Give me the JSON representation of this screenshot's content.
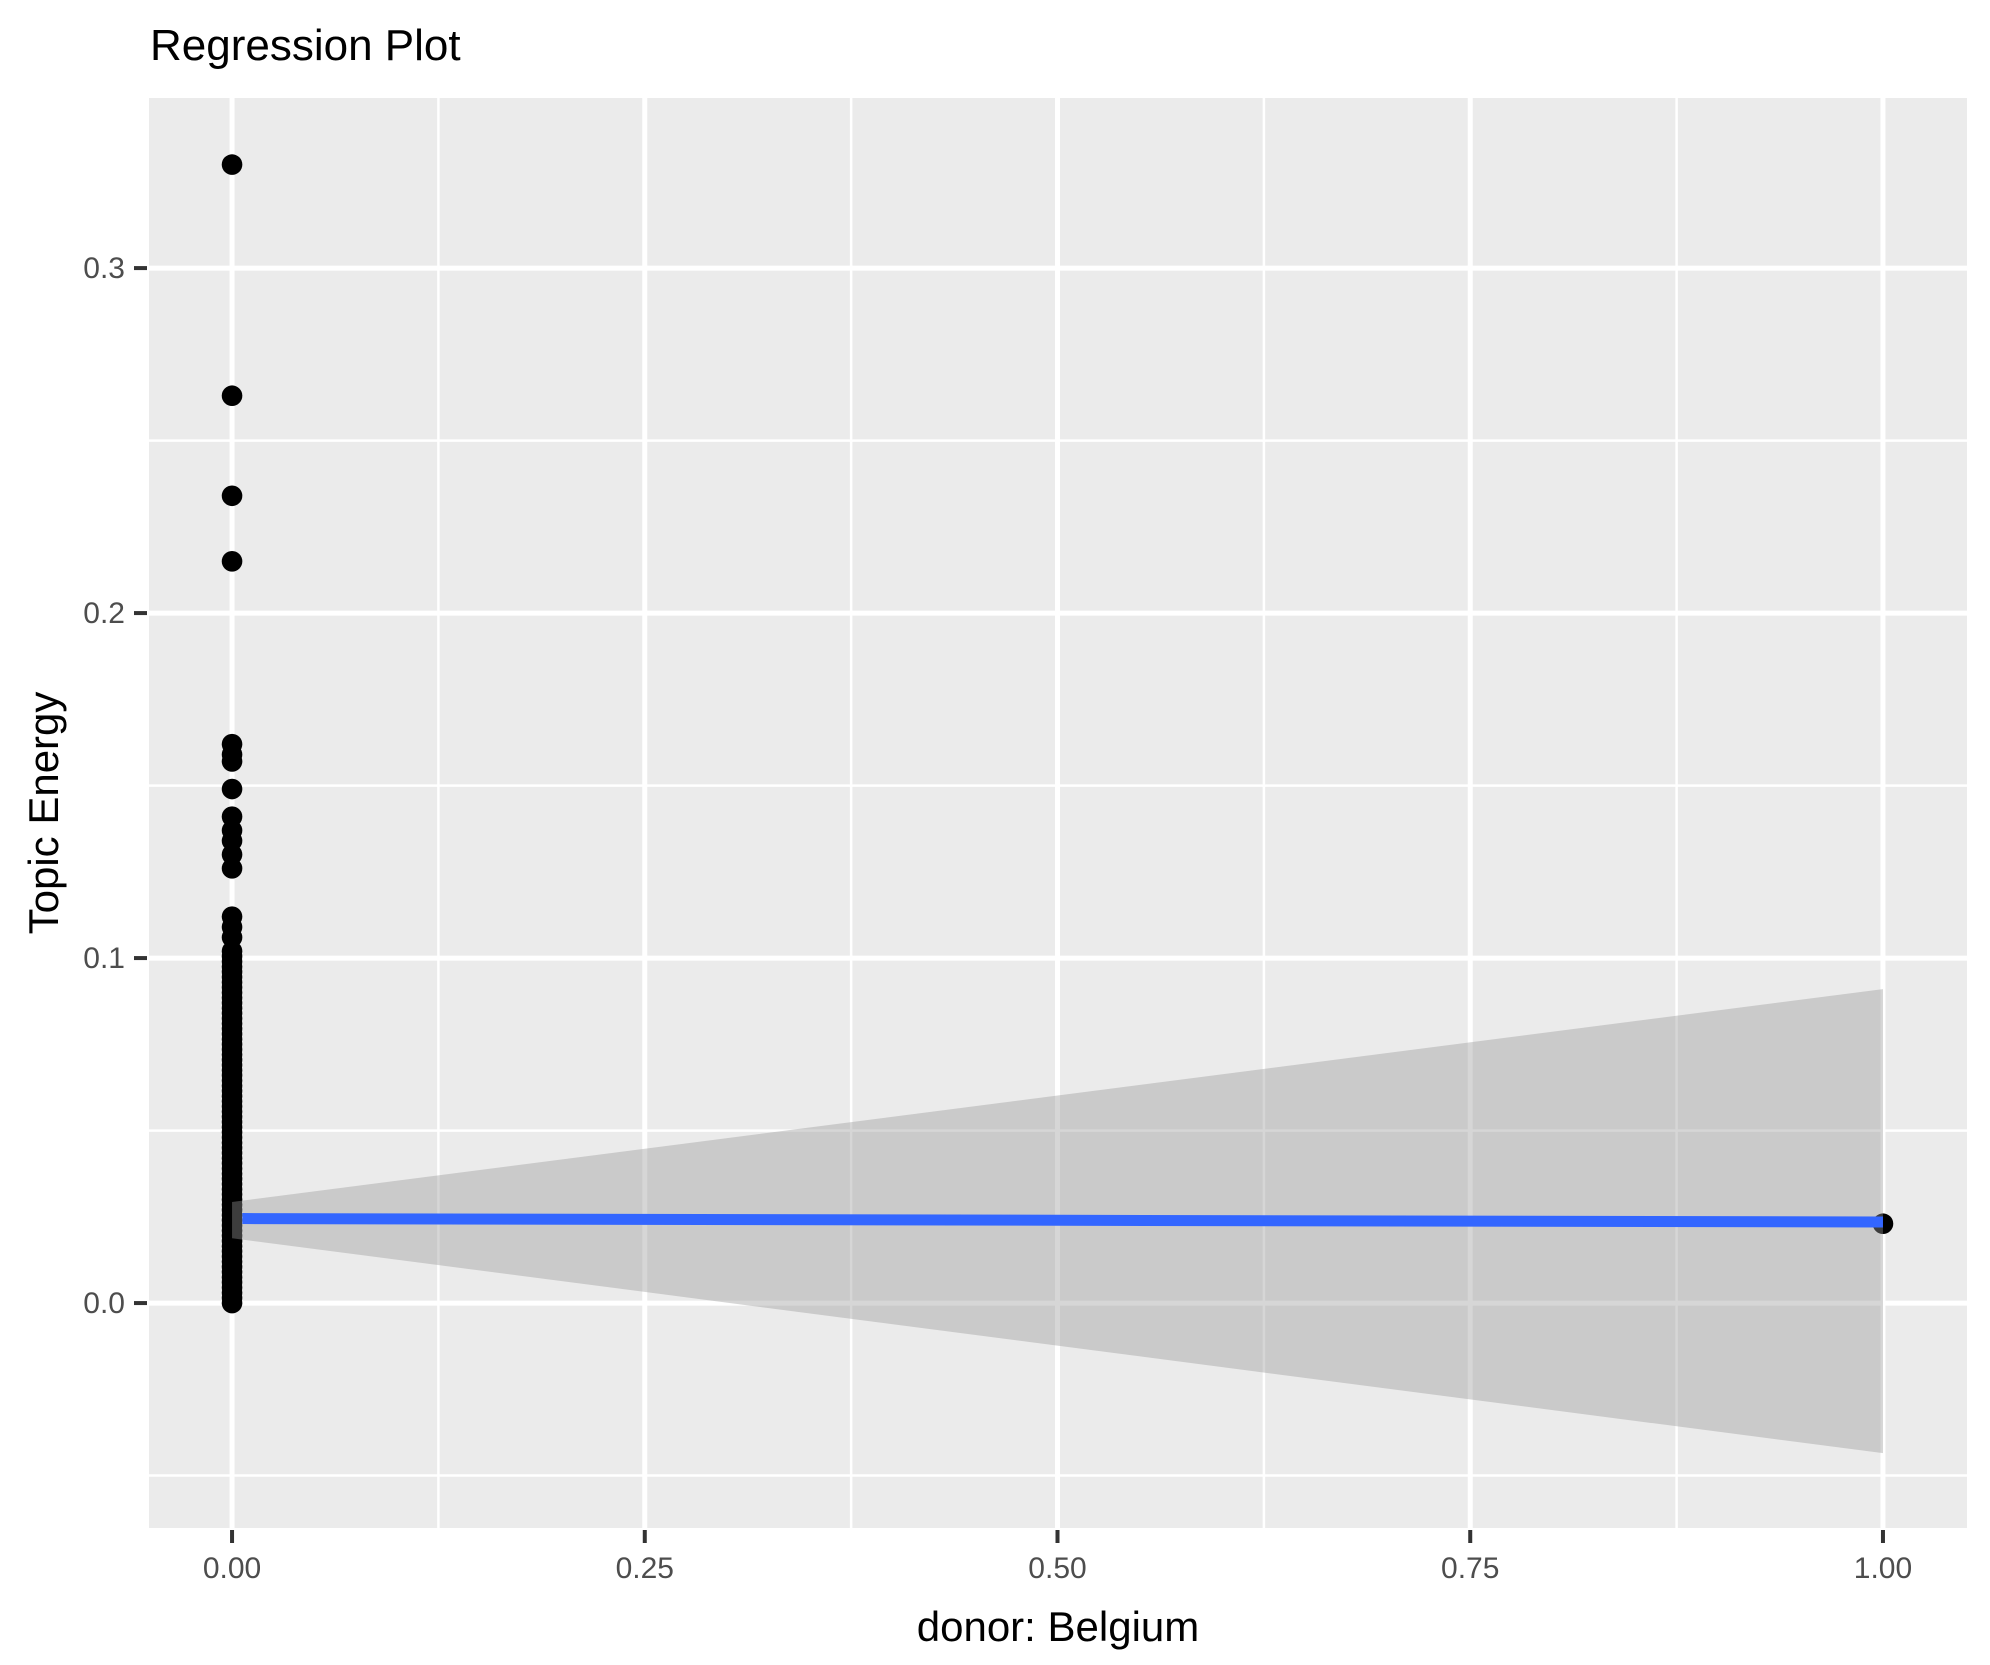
{
  "chart": {
    "title": "Regression Plot"
  },
  "axes": {
    "x": {
      "label": "donor: Belgium",
      "tick_values": [
        0,
        0.25,
        0.5,
        0.75,
        1.0
      ],
      "tick_labels": [
        "0.00",
        "0.25",
        "0.50",
        "0.75",
        "1.00"
      ],
      "minor_tick_values": [
        0.125,
        0.375,
        0.625,
        0.875
      ]
    },
    "y": {
      "label": "Topic Energy",
      "tick_values": [
        0,
        0.1,
        0.2,
        0.3
      ],
      "tick_labels": [
        "0.0",
        "0.1",
        "0.2",
        "0.3"
      ],
      "minor_tick_values": [
        -0.05,
        0.05,
        0.15,
        0.25
      ]
    }
  },
  "colors": {
    "panel_background": "#EBEBEB",
    "grid_major": "#FFFFFF",
    "grid_minor": "#FFFFFF",
    "point": "#000000",
    "regression_line": "#3366FF",
    "confidence_band": "rgba(153,153,153,0.4)",
    "tick_label": "#4D4D4D",
    "tick_mark": "#333333",
    "title_text": "#000000"
  },
  "chart_data": {
    "type": "scatter",
    "title": "Regression Plot",
    "xlabel": "donor: Belgium",
    "ylabel": "Topic Energy",
    "xlim": [
      -0.0503,
      1.0509
    ],
    "ylim": [
      -0.0652,
      0.3493
    ],
    "grid": true,
    "legend": false,
    "series": [
      {
        "name": "observations at x=0",
        "x_value": 0,
        "y_discrete": [
          0.33,
          0.263,
          0.234,
          0.215,
          0.162,
          0.159,
          0.157,
          0.149,
          0.141,
          0.137,
          0.134,
          0.13,
          0.126,
          0.112,
          0.109,
          0.106
        ],
        "y_dense_strip": {
          "min": 0.0,
          "max": 0.102,
          "step": 0.0015,
          "note": "solid column of heavily overlapping points"
        }
      },
      {
        "name": "observations at x=1",
        "x_value": 1,
        "y_discrete": [
          0.023
        ]
      }
    ],
    "regression": {
      "fit_at_x0": 0.0245,
      "fit_at_x1": 0.0235,
      "ci_at_x0": [
        0.0188,
        0.0293
      ],
      "ci_at_x1": [
        -0.0435,
        0.091
      ]
    }
  }
}
